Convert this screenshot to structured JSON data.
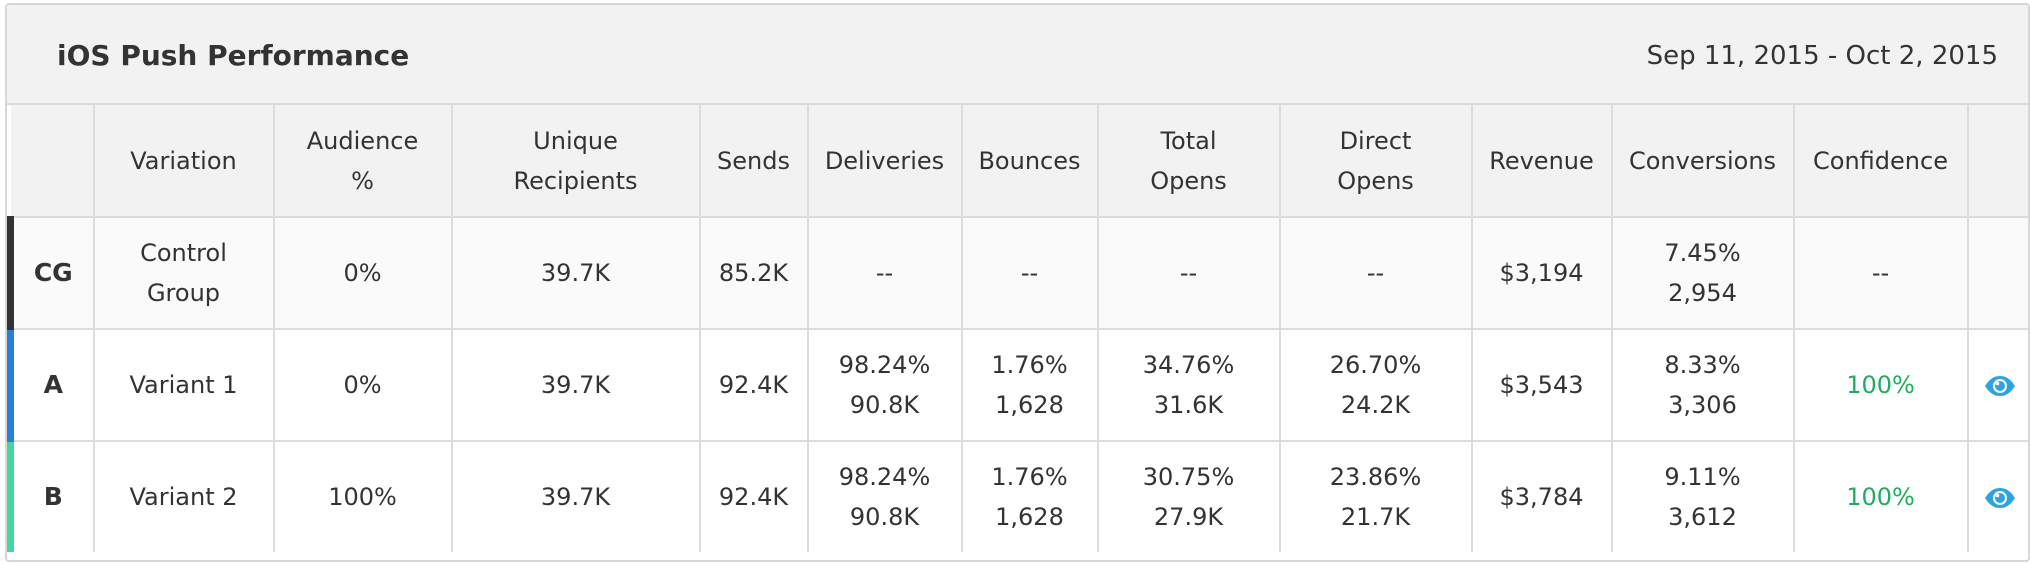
{
  "header": {
    "title": "iOS Push Performance",
    "date_range": "Sep 11, 2015 - Oct 2, 2015"
  },
  "columns": {
    "variation": "Variation",
    "audience_l1": "Audience",
    "audience_l2": "%",
    "unique_l1": "Unique",
    "unique_l2": "Recipients",
    "sends": "Sends",
    "deliveries": "Deliveries",
    "bounces": "Bounces",
    "total_opens_l1": "Total",
    "total_opens_l2": "Opens",
    "direct_opens_l1": "Direct",
    "direct_opens_l2": "Opens",
    "revenue": "Revenue",
    "conversions": "Conversions",
    "confidence": "Confidence"
  },
  "colors": {
    "cg_bar": "#333333",
    "a_bar": "#2a7fdc",
    "b_bar": "#45d6a0",
    "confidence_text": "#1fae5e",
    "eye_icon": "#2ea3e3"
  },
  "rows": [
    {
      "id": "CG",
      "variation_l1": "Control",
      "variation_l2": "Group",
      "audience": "0%",
      "unique_recipients": "39.7K",
      "sends": "85.2K",
      "deliveries": "--",
      "bounces": "--",
      "total_opens": "--",
      "direct_opens": "--",
      "revenue": "$3,194",
      "conversions_pct": "7.45%",
      "conversions_count": "2,954",
      "confidence": "--"
    },
    {
      "id": "A",
      "variation": "Variant 1",
      "audience": "0%",
      "unique_recipients": "39.7K",
      "sends": "92.4K",
      "deliveries_pct": "98.24%",
      "deliveries_count": "90.8K",
      "bounces_pct": "1.76%",
      "bounces_count": "1,628",
      "total_opens_pct": "34.76%",
      "total_opens_count": "31.6K",
      "direct_opens_pct": "26.70%",
      "direct_opens_count": "24.2K",
      "revenue": "$3,543",
      "conversions_pct": "8.33%",
      "conversions_count": "3,306",
      "confidence": "100%",
      "action_icon": "eye-icon"
    },
    {
      "id": "B",
      "variation": "Variant 2",
      "audience": "100%",
      "unique_recipients": "39.7K",
      "sends": "92.4K",
      "deliveries_pct": "98.24%",
      "deliveries_count": "90.8K",
      "bounces_pct": "1.76%",
      "bounces_count": "1,628",
      "total_opens_pct": "30.75%",
      "total_opens_count": "27.9K",
      "direct_opens_pct": "23.86%",
      "direct_opens_count": "21.7K",
      "revenue": "$3,784",
      "conversions_pct": "9.11%",
      "conversions_count": "3,612",
      "confidence": "100%",
      "action_icon": "eye-icon"
    }
  ]
}
